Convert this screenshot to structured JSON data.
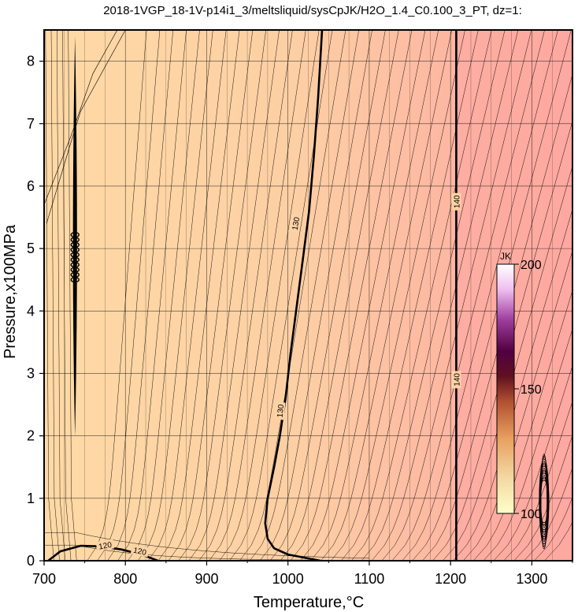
{
  "chart_data": {
    "type": "heatmap",
    "title": "2018-1VGP_18-1V-p14i1_3/meltsliquid/sysCpJK/H2O_1.4_C0.100_3_PT, dz=1:",
    "xlabel": "Temperature,°C",
    "ylabel": "Pressure,x100MPa",
    "xlim": [
      700,
      1350
    ],
    "ylim": [
      0,
      8.5
    ],
    "x_ticks": [
      700,
      800,
      900,
      1000,
      1100,
      1200,
      1300
    ],
    "y_ticks": [
      0,
      1,
      2,
      3,
      4,
      5,
      6,
      7,
      8
    ],
    "grid": true,
    "colorbar": {
      "label": "JK",
      "range": [
        100,
        200
      ],
      "ticks": [
        100,
        150,
        200
      ],
      "position": "right",
      "colors": [
        "#ffffc8",
        "#f3d6a0",
        "#e8a060",
        "#b05030",
        "#601020",
        "#500040",
        "#a040a0",
        "#f0c0f0",
        "#ffffff"
      ]
    },
    "field_colors": {
      "low": "#fed9a5",
      "high": "#fda8a0"
    },
    "major_contours": [
      {
        "level": "120",
        "labels": [
          "120",
          "120"
        ],
        "points": [
          [
            705,
            0.0
          ],
          [
            720,
            0.15
          ],
          [
            745,
            0.24
          ],
          [
            770,
            0.23
          ],
          [
            795,
            0.18
          ],
          [
            820,
            0.1
          ],
          [
            840,
            0.0
          ]
        ]
      },
      {
        "level": "130",
        "labels": [
          "130",
          "130"
        ],
        "points": [
          [
            1040,
            0.0
          ],
          [
            1000,
            0.1
          ],
          [
            983,
            0.2
          ],
          [
            975,
            0.35
          ],
          [
            972,
            0.6
          ],
          [
            975,
            1.0
          ],
          [
            983,
            1.5
          ],
          [
            990,
            2.0
          ],
          [
            997,
            2.6
          ],
          [
            1003,
            3.3
          ],
          [
            1010,
            4.0
          ],
          [
            1018,
            4.8
          ],
          [
            1026,
            5.6
          ],
          [
            1032,
            6.5
          ],
          [
            1037,
            7.4
          ],
          [
            1042,
            8.5
          ]
        ]
      },
      {
        "level": "140",
        "labels": [
          "140",
          "140"
        ],
        "points": [
          [
            1207,
            0.0
          ],
          [
            1207,
            8.5
          ]
        ]
      }
    ]
  }
}
